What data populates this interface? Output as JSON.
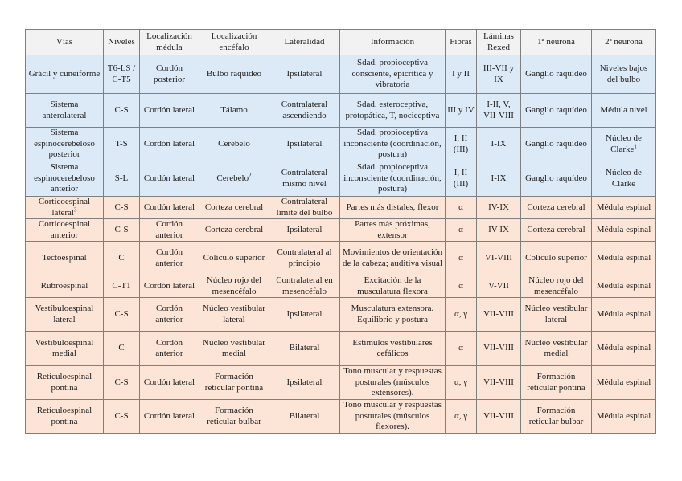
{
  "colors": {
    "ascending_row": "#dce9f7",
    "descending_row": "#fce4d6",
    "header": "#f2f2f2"
  },
  "headers": [
    "Vías",
    "Niveles",
    "Localización médula",
    "Localización encéfalo",
    "Lateralidad",
    "Información",
    "Fibras",
    "Láminas Rexed",
    "1ª neurona",
    "2ª neurona"
  ],
  "rows": [
    {
      "type": "asc",
      "cells": [
        "Grácil y cuneiforme",
        "T6-LS / C-T5",
        "Cordón posterior",
        "Bulbo raquídeo",
        "Ipsilateral",
        "Sdad. propioceptiva consciente, epicrítica y vibratoria",
        "I y II",
        "III-VII y IX",
        "Ganglio raquídeo",
        "Niveles bajos del bulbo"
      ]
    },
    {
      "type": "asc",
      "cells": [
        "Sistema anterolateral",
        "C-S",
        "Cordón lateral",
        "Tálamo",
        "Contralateral ascendiendo",
        "Sdad. esteroceptiva, protopática, T, nociceptiva",
        "III y IV",
        "I-II, V, VII-VIII",
        "Ganglio raquídeo",
        "Médula nivel"
      ]
    },
    {
      "type": "asc",
      "cells": [
        "Sistema espinocerebeloso posterior",
        "T-S",
        "Cordón lateral",
        "Cerebelo",
        "Ipsilateral",
        "Sdad. propioceptiva inconsciente (coordinación, postura)",
        "I, II (III)",
        "I-IX",
        "Ganglio raquídeo",
        "Núcleo de Clarke¹"
      ]
    },
    {
      "type": "asc",
      "cells": [
        "Sistema espinocerebeloso anterior",
        "S-L",
        "Cordón lateral",
        "Cerebelo²",
        "Contralateral mismo nivel",
        "Sdad. propioceptiva inconsciente (coordinación, postura)",
        "I, II (III)",
        "I-IX",
        "Ganglio raquídeo",
        "Núcleo de Clarke"
      ]
    },
    {
      "type": "desc",
      "cells": [
        "Corticoespinal lateral³",
        "C-S",
        "Cordón lateral",
        "Corteza cerebral",
        "Contralateral límite del bulbo",
        "Partes más distales, flexor",
        "α",
        "IV-IX",
        "Corteza cerebral",
        "Médula espinal"
      ]
    },
    {
      "type": "desc",
      "cells": [
        "Corticoespinal anterior",
        "C-S",
        "Cordón anterior",
        "Corteza cerebral",
        "Ipsilateral",
        "Partes más próximas, extensor",
        "α",
        "IV-IX",
        "Corteza cerebral",
        "Médula espinal"
      ]
    },
    {
      "type": "desc",
      "cells": [
        "Tectoespinal",
        "C",
        "Cordón anterior",
        "Colículo superior",
        "Contralateral al principio",
        "Movimientos de orientación de la cabeza; auditiva visual",
        "α",
        "VI-VIII",
        "Colículo superior",
        "Médula espinal"
      ]
    },
    {
      "type": "desc",
      "cells": [
        "Rubroespinal",
        "C-T1",
        "Cordón lateral",
        "Núcleo rojo del mesencéfalo",
        "Contralateral en mesencéfalo",
        "Excitación de la musculatura flexora",
        "α",
        "V-VII",
        "Núcleo rojo del mesencéfalo",
        "Médula espinal"
      ]
    },
    {
      "type": "desc",
      "cells": [
        "Vestíbuloespinal lateral",
        "C-S",
        "Cordón anterior",
        "Núcleo vestibular lateral",
        "Ipsilateral",
        "Musculatura extensora. Equilibrio y postura",
        "α, γ",
        "VII-VIII",
        "Núcleo vestibular lateral",
        "Médula espinal"
      ]
    },
    {
      "type": "desc",
      "cells": [
        "Vestíbuloespinal medial",
        "C",
        "Cordón anterior",
        "Núcleo vestibular medial",
        "Bilateral",
        "Estímulos vestibulares cefálicos",
        "α",
        "VII-VIII",
        "Núcleo vestibular medial",
        "Médula espinal"
      ]
    },
    {
      "type": "desc",
      "cells": [
        "Retículoespinal pontina",
        "C-S",
        "Cordón lateral",
        "Formación reticular pontina",
        "Ipsilateral",
        "Tono muscular y respuestas posturales (músculos extensores).",
        "α, γ",
        "VII-VIII",
        "Formación reticular pontina",
        "Médula espinal"
      ]
    },
    {
      "type": "desc",
      "cells": [
        "Retículoespinal pontina",
        "C-S",
        "Cordón lateral",
        "Formación reticular bulbar",
        "Bilateral",
        "Tono muscular y respuestas posturales (músculos flexores).",
        "α, γ",
        "VII-VIII",
        "Formación reticular bulbar",
        "Médula espinal"
      ]
    }
  ]
}
